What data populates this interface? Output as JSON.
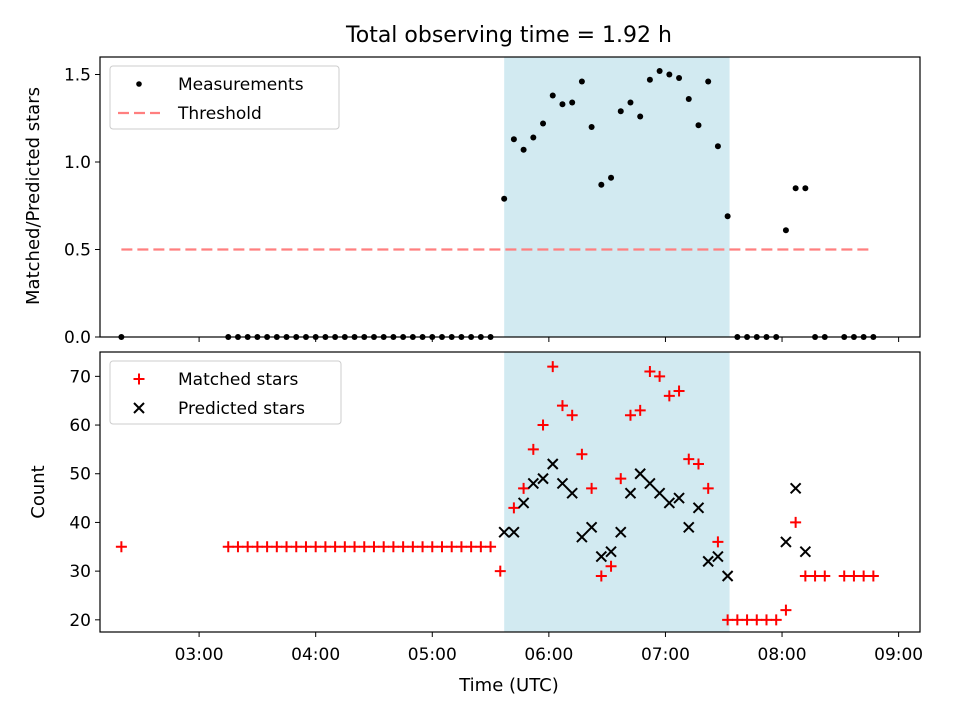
{
  "title": "Total observing time = 1.92 h",
  "xlabel": "Time (UTC)",
  "x_ticks": [
    "03:00",
    "04:00",
    "05:00",
    "06:00",
    "07:00",
    "08:00",
    "09:00"
  ],
  "span_color": "#add8e6",
  "chart_data": [
    {
      "type": "scatter",
      "ylabel": "Matched/Predicted stars",
      "ylim": [
        0,
        1.6
      ],
      "y_ticks": [
        "0.0",
        "0.5",
        "1.0",
        "1.5"
      ],
      "xlim": [
        "02:09",
        "09:11"
      ],
      "highlight_span": [
        "05:37",
        "07:33"
      ],
      "legend": {
        "position": "upper left",
        "entries": [
          "Measurements",
          "Threshold"
        ]
      },
      "threshold": {
        "name": "Threshold",
        "value": 0.5,
        "x_range": [
          "02:20",
          "08:45"
        ],
        "color": "#ff7f7f",
        "style": "dashed"
      },
      "series": [
        {
          "name": "Measurements",
          "color": "#000000",
          "x": [
            "02:20",
            "03:15",
            "03:20",
            "03:25",
            "03:30",
            "03:35",
            "03:40",
            "03:45",
            "03:50",
            "03:55",
            "04:00",
            "04:05",
            "04:10",
            "04:15",
            "04:20",
            "04:25",
            "04:30",
            "04:35",
            "04:40",
            "04:45",
            "04:50",
            "04:55",
            "05:00",
            "05:05",
            "05:10",
            "05:15",
            "05:20",
            "05:25",
            "05:30",
            "05:37",
            "05:42",
            "05:47",
            "05:52",
            "05:57",
            "06:02",
            "06:07",
            "06:12",
            "06:17",
            "06:22",
            "06:27",
            "06:32",
            "06:37",
            "06:42",
            "06:47",
            "06:52",
            "06:57",
            "07:02",
            "07:07",
            "07:12",
            "07:17",
            "07:22",
            "07:27",
            "07:32",
            "07:37",
            "07:42",
            "07:47",
            "07:52",
            "07:57",
            "08:02",
            "08:07",
            "08:12",
            "08:17",
            "08:22",
            "08:32",
            "08:37",
            "08:42",
            "08:47"
          ],
          "y": [
            0,
            0,
            0,
            0,
            0,
            0,
            0,
            0,
            0,
            0,
            0,
            0,
            0,
            0,
            0,
            0,
            0,
            0,
            0,
            0,
            0,
            0,
            0,
            0,
            0,
            0,
            0,
            0,
            0,
            0.79,
            1.13,
            1.07,
            1.14,
            1.22,
            1.38,
            1.33,
            1.34,
            1.46,
            1.2,
            0.87,
            0.91,
            1.29,
            1.34,
            1.26,
            1.47,
            1.52,
            1.5,
            1.48,
            1.36,
            1.21,
            1.46,
            1.09,
            0.69,
            0,
            0,
            0,
            0,
            0,
            0.61,
            0.85,
            0.85,
            0,
            0,
            0,
            0,
            0,
            0
          ]
        }
      ]
    },
    {
      "type": "scatter",
      "ylabel": "Count",
      "ylim": [
        17.5,
        75
      ],
      "y_ticks": [
        "20",
        "30",
        "40",
        "50",
        "60",
        "70"
      ],
      "xlim": [
        "02:09",
        "09:11"
      ],
      "highlight_span": [
        "05:37",
        "07:33"
      ],
      "legend": {
        "position": "upper left",
        "entries": [
          "Matched stars",
          "Predicted stars"
        ]
      },
      "series": [
        {
          "name": "Matched stars",
          "marker": "+",
          "color": "#ff0000",
          "x": [
            "02:20",
            "03:15",
            "03:20",
            "03:25",
            "03:30",
            "03:35",
            "03:40",
            "03:45",
            "03:50",
            "03:55",
            "04:00",
            "04:05",
            "04:10",
            "04:15",
            "04:20",
            "04:25",
            "04:30",
            "04:35",
            "04:40",
            "04:45",
            "04:50",
            "04:55",
            "05:00",
            "05:05",
            "05:10",
            "05:15",
            "05:20",
            "05:25",
            "05:30",
            "05:35",
            "05:42",
            "05:47",
            "05:52",
            "05:57",
            "06:02",
            "06:07",
            "06:12",
            "06:17",
            "06:22",
            "06:27",
            "06:32",
            "06:37",
            "06:42",
            "06:47",
            "06:52",
            "06:57",
            "07:02",
            "07:07",
            "07:12",
            "07:17",
            "07:22",
            "07:27",
            "07:32",
            "07:37",
            "07:42",
            "07:47",
            "07:52",
            "07:57",
            "08:02",
            "08:07",
            "08:12",
            "08:17",
            "08:22",
            "08:32",
            "08:37",
            "08:42",
            "08:47"
          ],
          "y": [
            35,
            35,
            35,
            35,
            35,
            35,
            35,
            35,
            35,
            35,
            35,
            35,
            35,
            35,
            35,
            35,
            35,
            35,
            35,
            35,
            35,
            35,
            35,
            35,
            35,
            35,
            35,
            35,
            35,
            30,
            43,
            47,
            55,
            60,
            72,
            64,
            62,
            54,
            47,
            29,
            31,
            49,
            62,
            63,
            71,
            70,
            66,
            67,
            53,
            52,
            47,
            36,
            20,
            20,
            20,
            20,
            20,
            20,
            22,
            40,
            29,
            29,
            29,
            29,
            29,
            29,
            29
          ]
        },
        {
          "name": "Predicted stars",
          "marker": "x",
          "color": "#000000",
          "x": [
            "05:37",
            "05:42",
            "05:47",
            "05:52",
            "05:57",
            "06:02",
            "06:07",
            "06:12",
            "06:17",
            "06:22",
            "06:27",
            "06:32",
            "06:37",
            "06:42",
            "06:47",
            "06:52",
            "06:57",
            "07:02",
            "07:07",
            "07:12",
            "07:17",
            "07:22",
            "07:27",
            "07:32",
            "08:02",
            "08:07",
            "08:12"
          ],
          "y": [
            38,
            38,
            44,
            48,
            49,
            52,
            48,
            46,
            37,
            39,
            33,
            34,
            38,
            46,
            50,
            48,
            46,
            44,
            45,
            39,
            43,
            32,
            33,
            29,
            36,
            47,
            34
          ]
        }
      ]
    }
  ]
}
